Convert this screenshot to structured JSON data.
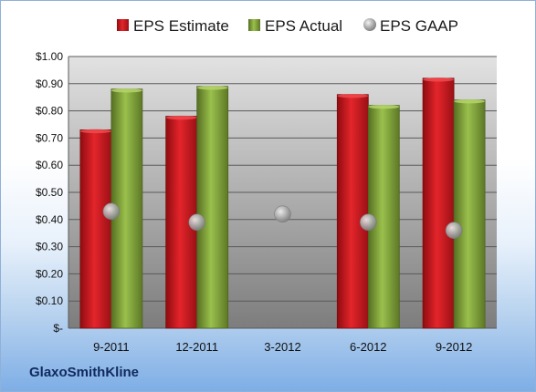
{
  "company": "GlaxoSmithKline",
  "colors": {
    "estimate": "#c8161d",
    "actual": "#7ea33a",
    "gaap": "#a8a8a8",
    "plot_top": "#e0e0e0",
    "plot_bottom": "#7f7f7f"
  },
  "chart_data": {
    "type": "bar",
    "categories": [
      "9-2011",
      "12-2011",
      "3-2012",
      "6-2012",
      "9-2012"
    ],
    "series": [
      {
        "name": "EPS Estimate",
        "style": "bar",
        "values": [
          0.73,
          0.78,
          null,
          0.86,
          0.92
        ]
      },
      {
        "name": "EPS Actual",
        "style": "bar",
        "values": [
          0.88,
          0.89,
          null,
          0.82,
          0.84
        ]
      },
      {
        "name": "EPS GAAP",
        "style": "marker",
        "values": [
          0.43,
          0.39,
          0.42,
          0.39,
          0.36
        ]
      }
    ],
    "yticks": [
      "$-",
      "$0.10",
      "$0.20",
      "$0.30",
      "$0.40",
      "$0.50",
      "$0.60",
      "$0.70",
      "$0.80",
      "$0.90",
      "$1.00"
    ],
    "ylim": [
      0,
      1.0
    ],
    "grid": true,
    "legend": "top"
  }
}
